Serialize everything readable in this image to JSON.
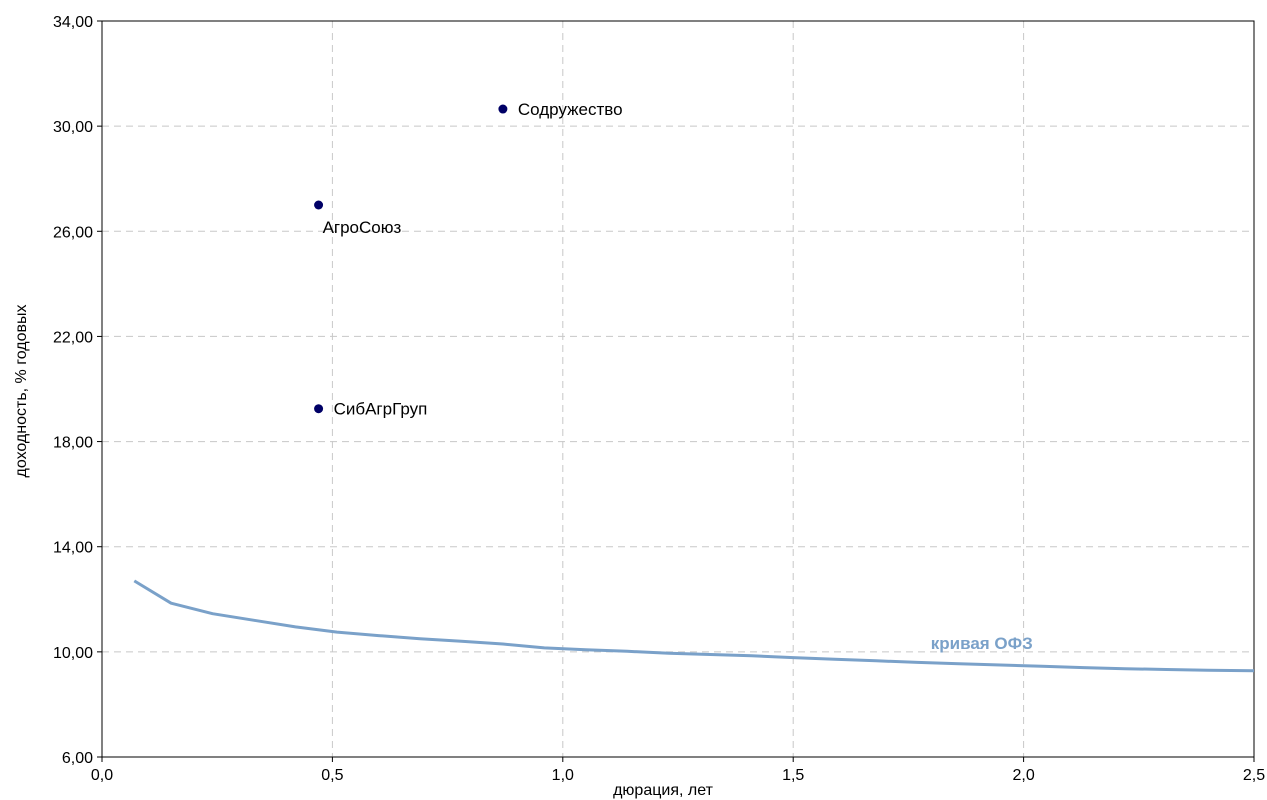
{
  "chart_data": {
    "type": "scatter",
    "xlabel": "дюрация, лет",
    "ylabel": "доходность, % годовых",
    "xlim": [
      0,
      2.5
    ],
    "ylim": [
      6,
      34
    ],
    "x_ticks": [
      "0,0",
      "0,5",
      "1,0",
      "1,5",
      "2,0",
      "2,5"
    ],
    "y_ticks": [
      "6,00",
      "10,00",
      "14,00",
      "18,00",
      "22,00",
      "26,00",
      "30,00",
      "34,00"
    ],
    "grid": true,
    "points": [
      {
        "label": "Содружество",
        "x": 0.87,
        "y": 30.65
      },
      {
        "label": "АгроСоюз",
        "x": 0.47,
        "y": 27.0
      },
      {
        "label": "СибАгрГруп",
        "x": 0.47,
        "y": 19.25
      }
    ],
    "curve": {
      "label": "кривая ОФЗ",
      "x": [
        0.07,
        0.15,
        0.24,
        0.33,
        0.42,
        0.51,
        0.6,
        0.69,
        0.78,
        0.87,
        0.96,
        1.05,
        1.14,
        1.23,
        1.32,
        1.41,
        1.5,
        1.59,
        1.68,
        1.77,
        1.86,
        1.95,
        2.04,
        2.13,
        2.22,
        2.31,
        2.4,
        2.5
      ],
      "y": [
        12.7,
        11.85,
        11.45,
        11.2,
        10.95,
        10.75,
        10.62,
        10.5,
        10.4,
        10.3,
        10.15,
        10.08,
        10.02,
        9.95,
        9.9,
        9.85,
        9.78,
        9.72,
        9.66,
        9.6,
        9.55,
        9.5,
        9.45,
        9.4,
        9.36,
        9.33,
        9.3,
        9.28
      ]
    },
    "colors": {
      "points": "#000066",
      "curve": "#7aa1c9",
      "curve_label": "#7aa1c9"
    }
  }
}
